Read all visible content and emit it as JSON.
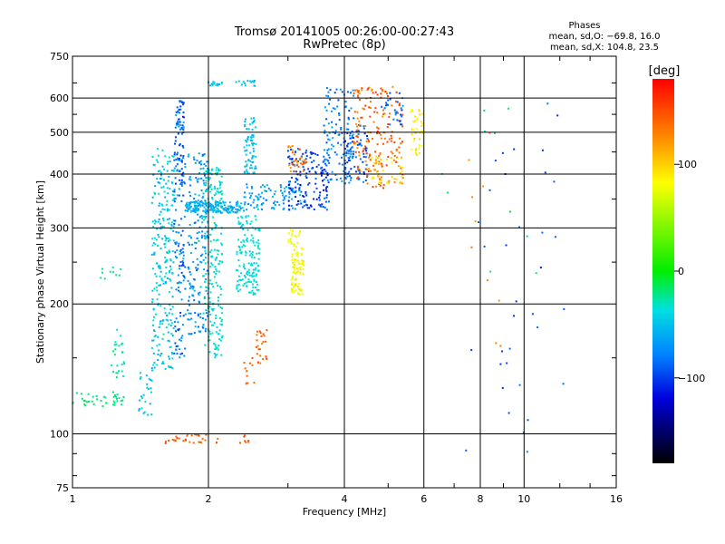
{
  "chart_data": {
    "type": "scatter",
    "title": "Tromsø 20141005 00:26:00-00:27:43",
    "subtitle": "RwPretec (8p)",
    "xlabel": "Frequency [MHz]",
    "ylabel": "Stationary phase Virtual Height [km]",
    "x_scale": "log",
    "y_scale": "log",
    "xlim": [
      1,
      16
    ],
    "ylim": [
      75,
      750
    ],
    "x_ticks": [
      1,
      2,
      4,
      6,
      8,
      10,
      16
    ],
    "x_tick_labels": [
      "1",
      "2",
      "4",
      "6",
      "8",
      "10",
      "16"
    ],
    "y_ticks": [
      75,
      100,
      200,
      300,
      400,
      500,
      600,
      750
    ],
    "y_tick_labels": [
      "75",
      "100",
      "200",
      "300",
      "400",
      "500",
      "600",
      "750"
    ],
    "grid": true,
    "stats": {
      "heading": "Phases",
      "line_o": "mean, sd,O: −69.8, 16.0",
      "line_x": "mean, sd,X: 104.8, 23.5"
    },
    "colorbar": {
      "label": "[deg]",
      "range": [
        -180,
        180
      ],
      "ticks": [
        100,
        0,
        -100
      ],
      "tick_labels": [
        "100",
        "0",
        "−100"
      ]
    },
    "point_groups": [
      {
        "f": [
          1.0,
          1.3
        ],
        "h": [
          115,
          125
        ],
        "phase": [
          -30,
          -10
        ],
        "n": 40
      },
      {
        "f": [
          1.22,
          1.32
        ],
        "h": [
          135,
          175
        ],
        "phase": [
          -40,
          -20
        ],
        "n": 25
      },
      {
        "f": [
          1.38,
          1.5
        ],
        "h": [
          110,
          140
        ],
        "phase": [
          -60,
          -40
        ],
        "n": 25
      },
      {
        "f": [
          1.15,
          1.28
        ],
        "h": [
          225,
          245
        ],
        "phase": [
          -30,
          -15
        ],
        "n": 10
      },
      {
        "f": [
          1.5,
          1.68
        ],
        "h": [
          140,
          460
        ],
        "phase": [
          -60,
          -30
        ],
        "n": 260
      },
      {
        "f": [
          1.68,
          1.78
        ],
        "h": [
          150,
          600
        ],
        "phase": [
          -100,
          -60
        ],
        "n": 160
      },
      {
        "f": [
          1.72,
          1.76
        ],
        "h": [
          380,
          600
        ],
        "phase": [
          -110,
          -80
        ],
        "n": 30
      },
      {
        "f": [
          1.8,
          2.0
        ],
        "h": [
          170,
          450
        ],
        "phase": [
          -90,
          -50
        ],
        "n": 180
      },
      {
        "f": [
          1.95,
          2.15
        ],
        "h": [
          150,
          420
        ],
        "phase": [
          -45,
          -25
        ],
        "n": 220
      },
      {
        "f": [
          1.78,
          2.4
        ],
        "h": [
          325,
          345
        ],
        "phase": [
          -70,
          -45
        ],
        "n": 160
      },
      {
        "f": [
          2.3,
          2.6
        ],
        "h": [
          210,
          320
        ],
        "phase": [
          -45,
          -30
        ],
        "n": 150
      },
      {
        "f": [
          2.4,
          2.55
        ],
        "h": [
          400,
          540
        ],
        "phase": [
          -60,
          -40
        ],
        "n": 70
      },
      {
        "f": [
          2.0,
          2.15
        ],
        "h": [
          640,
          660
        ],
        "phase": [
          -60,
          -40
        ],
        "n": 14
      },
      {
        "f": [
          2.3,
          2.55
        ],
        "h": [
          640,
          660
        ],
        "phase": [
          -60,
          -40
        ],
        "n": 14
      },
      {
        "f": [
          2.4,
          3.2
        ],
        "h": [
          330,
          380
        ],
        "phase": [
          -80,
          -50
        ],
        "n": 90
      },
      {
        "f": [
          3.0,
          3.7
        ],
        "h": [
          330,
          460
        ],
        "phase": [
          -120,
          -80
        ],
        "n": 150
      },
      {
        "f": [
          3.6,
          4.2
        ],
        "h": [
          380,
          640
        ],
        "phase": [
          -100,
          -60
        ],
        "n": 120
      },
      {
        "f": [
          4.0,
          4.5
        ],
        "h": [
          380,
          520
        ],
        "phase": [
          -110,
          -70
        ],
        "n": 80
      },
      {
        "f": [
          4.2,
          5.4
        ],
        "h": [
          370,
          640
        ],
        "phase": [
          120,
          160
        ],
        "n": 180
      },
      {
        "f": [
          4.6,
          5.4
        ],
        "h": [
          380,
          440
        ],
        "phase": [
          80,
          110
        ],
        "n": 40
      },
      {
        "f": [
          4.8,
          5.4
        ],
        "h": [
          520,
          620
        ],
        "phase": [
          -100,
          -60
        ],
        "n": 30
      },
      {
        "f": [
          5.6,
          6.0
        ],
        "h": [
          440,
          570
        ],
        "phase": [
          80,
          100
        ],
        "n": 40
      },
      {
        "f": [
          3.0,
          3.3
        ],
        "h": [
          400,
          470
        ],
        "phase": [
          115,
          145
        ],
        "n": 30
      },
      {
        "f": [
          3.05,
          3.25
        ],
        "h": [
          210,
          270
        ],
        "phase": [
          70,
          95
        ],
        "n": 80
      },
      {
        "f": [
          3.0,
          3.2
        ],
        "h": [
          270,
          300
        ],
        "phase": [
          70,
          95
        ],
        "n": 20
      },
      {
        "f": [
          2.55,
          2.7
        ],
        "h": [
          145,
          175
        ],
        "phase": [
          130,
          150
        ],
        "n": 25
      },
      {
        "f": [
          2.4,
          2.55
        ],
        "h": [
          130,
          150
        ],
        "phase": [
          130,
          150
        ],
        "n": 12
      },
      {
        "f": [
          1.6,
          2.1
        ],
        "h": [
          95,
          100
        ],
        "phase": [
          135,
          155
        ],
        "n": 30
      },
      {
        "f": [
          2.35,
          2.5
        ],
        "h": [
          95,
          100
        ],
        "phase": [
          135,
          155
        ],
        "n": 8
      },
      {
        "f": [
          7.3,
          12.5
        ],
        "h": [
          85,
          620
        ],
        "phase": [
          -110,
          -80
        ],
        "n": 35
      },
      {
        "f": [
          7.5,
          11.0
        ],
        "h": [
          150,
          560
        ],
        "phase": [
          110,
          140
        ],
        "n": 10
      },
      {
        "f": [
          6.5,
          11.0
        ],
        "h": [
          230,
          620
        ],
        "phase": [
          -30,
          -10
        ],
        "n": 10
      }
    ]
  }
}
